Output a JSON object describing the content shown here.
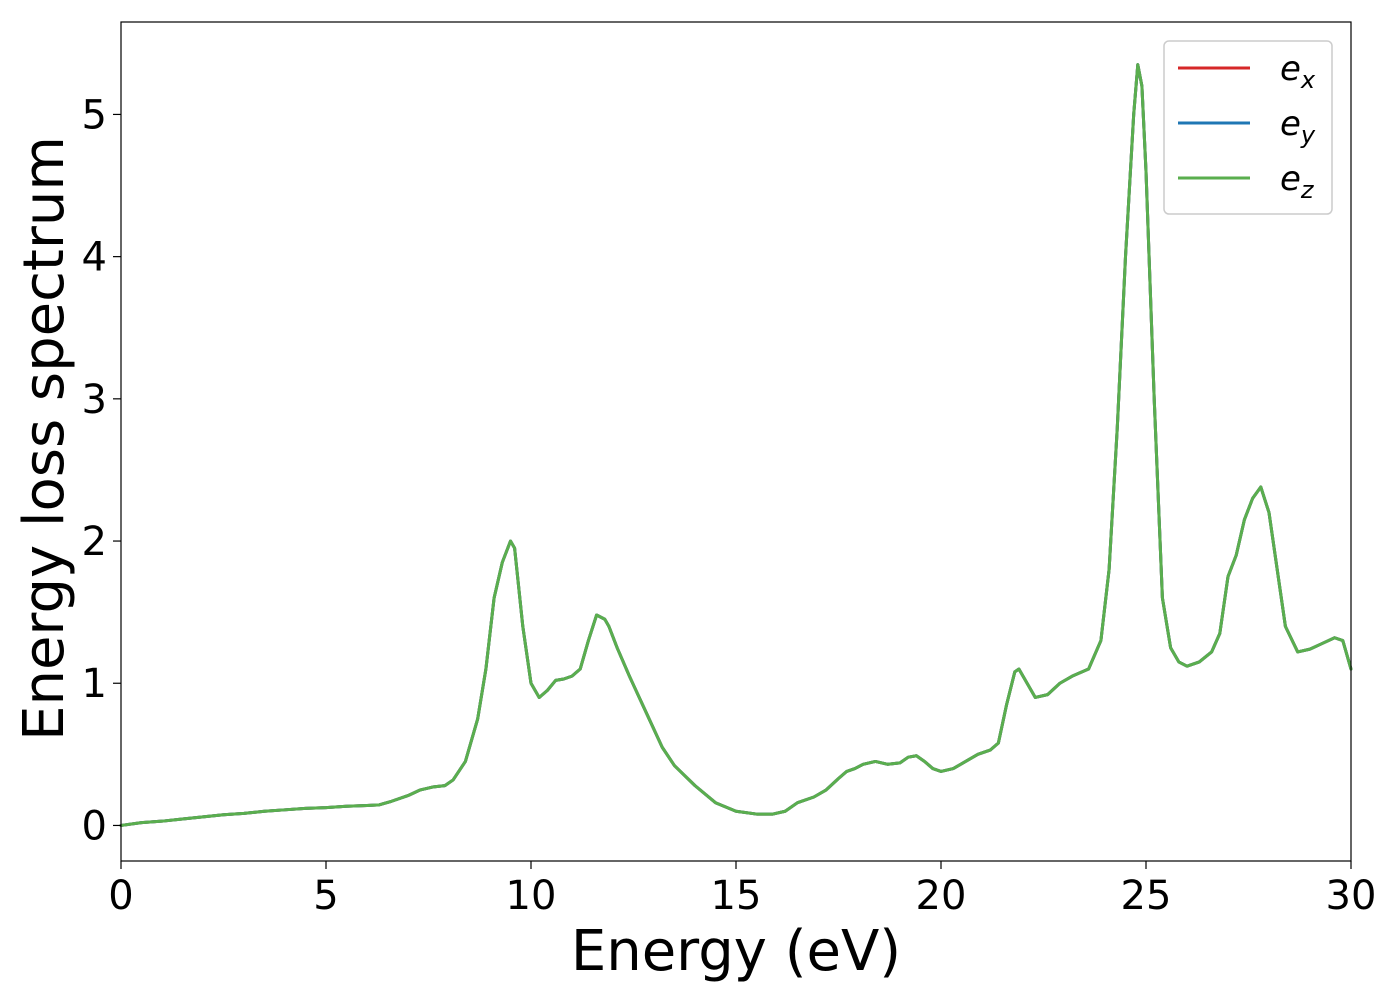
{
  "chart_data": {
    "type": "line",
    "title": "",
    "xlabel": "Energy (eV)",
    "ylabel": "Energy loss spectrum",
    "xlim": [
      0,
      30
    ],
    "ylim": [
      -0.25,
      5.65
    ],
    "xticks": [
      0,
      5,
      10,
      15,
      20,
      25,
      30
    ],
    "yticks": [
      0,
      1,
      2,
      3,
      4,
      5
    ],
    "grid": false,
    "legend_position": "top-right",
    "x": [
      0,
      0.5,
      1,
      1.5,
      2,
      2.5,
      3,
      3.5,
      4,
      4.5,
      5,
      5.5,
      6,
      6.3,
      6.6,
      7,
      7.3,
      7.6,
      7.9,
      8.1,
      8.4,
      8.7,
      8.9,
      9.1,
      9.3,
      9.5,
      9.6,
      9.8,
      10.0,
      10.2,
      10.4,
      10.6,
      10.8,
      11.0,
      11.2,
      11.4,
      11.6,
      11.8,
      11.9,
      12.1,
      12.4,
      12.8,
      13.2,
      13.5,
      14.0,
      14.5,
      15.0,
      15.5,
      15.9,
      16.2,
      16.5,
      16.9,
      17.2,
      17.5,
      17.7,
      17.9,
      18.1,
      18.4,
      18.7,
      19.0,
      19.2,
      19.4,
      19.6,
      19.8,
      20.0,
      20.3,
      20.6,
      20.9,
      21.2,
      21.4,
      21.6,
      21.8,
      21.9,
      22.1,
      22.3,
      22.6,
      22.9,
      23.2,
      23.6,
      23.9,
      24.1,
      24.3,
      24.5,
      24.7,
      24.8,
      24.9,
      25.0,
      25.2,
      25.4,
      25.6,
      25.8,
      26.0,
      26.3,
      26.6,
      26.8,
      27.0,
      27.2,
      27.4,
      27.6,
      27.8,
      28.0,
      28.2,
      28.4,
      28.7,
      29.0,
      29.3,
      29.6,
      29.8,
      30.0
    ],
    "series": [
      {
        "name": "e_x",
        "color": "#d62728",
        "values": [
          0.0,
          0.02,
          0.03,
          0.045,
          0.06,
          0.075,
          0.085,
          0.1,
          0.11,
          0.12,
          0.125,
          0.135,
          0.14,
          0.145,
          0.17,
          0.21,
          0.25,
          0.27,
          0.28,
          0.32,
          0.45,
          0.75,
          1.1,
          1.6,
          1.85,
          2.0,
          1.95,
          1.4,
          1.0,
          0.9,
          0.95,
          1.02,
          1.03,
          1.05,
          1.1,
          1.3,
          1.48,
          1.45,
          1.4,
          1.25,
          1.05,
          0.8,
          0.55,
          0.42,
          0.28,
          0.16,
          0.1,
          0.08,
          0.08,
          0.1,
          0.16,
          0.2,
          0.25,
          0.33,
          0.38,
          0.4,
          0.43,
          0.45,
          0.43,
          0.44,
          0.48,
          0.49,
          0.45,
          0.4,
          0.38,
          0.4,
          0.45,
          0.5,
          0.53,
          0.58,
          0.85,
          1.08,
          1.1,
          1.0,
          0.9,
          0.92,
          1.0,
          1.05,
          1.1,
          1.3,
          1.8,
          2.8,
          4.0,
          5.0,
          5.35,
          5.2,
          4.6,
          3.0,
          1.6,
          1.25,
          1.15,
          1.12,
          1.15,
          1.22,
          1.35,
          1.75,
          1.9,
          2.15,
          2.3,
          2.38,
          2.2,
          1.8,
          1.4,
          1.22,
          1.24,
          1.28,
          1.32,
          1.3,
          1.1
        ]
      },
      {
        "name": "e_y",
        "color": "#1f77b4",
        "values": [
          0.0,
          0.02,
          0.03,
          0.045,
          0.06,
          0.075,
          0.085,
          0.1,
          0.11,
          0.12,
          0.125,
          0.135,
          0.14,
          0.145,
          0.17,
          0.21,
          0.25,
          0.27,
          0.28,
          0.32,
          0.45,
          0.75,
          1.1,
          1.6,
          1.85,
          2.0,
          1.95,
          1.4,
          1.0,
          0.9,
          0.95,
          1.02,
          1.03,
          1.05,
          1.1,
          1.3,
          1.48,
          1.45,
          1.4,
          1.25,
          1.05,
          0.8,
          0.55,
          0.42,
          0.28,
          0.16,
          0.1,
          0.08,
          0.08,
          0.1,
          0.16,
          0.2,
          0.25,
          0.33,
          0.38,
          0.4,
          0.43,
          0.45,
          0.43,
          0.44,
          0.48,
          0.49,
          0.45,
          0.4,
          0.38,
          0.4,
          0.45,
          0.5,
          0.53,
          0.58,
          0.85,
          1.08,
          1.1,
          1.0,
          0.9,
          0.92,
          1.0,
          1.05,
          1.1,
          1.3,
          1.8,
          2.8,
          4.0,
          5.0,
          5.35,
          5.2,
          4.6,
          3.0,
          1.6,
          1.25,
          1.15,
          1.12,
          1.15,
          1.22,
          1.35,
          1.75,
          1.9,
          2.15,
          2.3,
          2.38,
          2.2,
          1.8,
          1.4,
          1.22,
          1.24,
          1.28,
          1.32,
          1.3,
          1.1
        ]
      },
      {
        "name": "e_z",
        "color": "#5aae4e",
        "values": [
          0.0,
          0.02,
          0.03,
          0.045,
          0.06,
          0.075,
          0.085,
          0.1,
          0.11,
          0.12,
          0.125,
          0.135,
          0.14,
          0.145,
          0.17,
          0.21,
          0.25,
          0.27,
          0.28,
          0.32,
          0.45,
          0.75,
          1.1,
          1.6,
          1.85,
          2.0,
          1.95,
          1.4,
          1.0,
          0.9,
          0.95,
          1.02,
          1.03,
          1.05,
          1.1,
          1.3,
          1.48,
          1.45,
          1.4,
          1.25,
          1.05,
          0.8,
          0.55,
          0.42,
          0.28,
          0.16,
          0.1,
          0.08,
          0.08,
          0.1,
          0.16,
          0.2,
          0.25,
          0.33,
          0.38,
          0.4,
          0.43,
          0.45,
          0.43,
          0.44,
          0.48,
          0.49,
          0.45,
          0.4,
          0.38,
          0.4,
          0.45,
          0.5,
          0.53,
          0.58,
          0.85,
          1.08,
          1.1,
          1.0,
          0.9,
          0.92,
          1.0,
          1.05,
          1.1,
          1.3,
          1.8,
          2.8,
          4.0,
          5.0,
          5.35,
          5.2,
          4.6,
          3.0,
          1.6,
          1.25,
          1.15,
          1.12,
          1.15,
          1.22,
          1.35,
          1.75,
          1.9,
          2.15,
          2.3,
          2.38,
          2.2,
          1.8,
          1.4,
          1.22,
          1.24,
          1.28,
          1.32,
          1.3,
          1.1
        ]
      }
    ],
    "legend": [
      {
        "base": "e",
        "sub": "x",
        "color": "#d62728"
      },
      {
        "base": "e",
        "sub": "y",
        "color": "#1f77b4"
      },
      {
        "base": "e",
        "sub": "z",
        "color": "#5aae4e"
      }
    ]
  }
}
